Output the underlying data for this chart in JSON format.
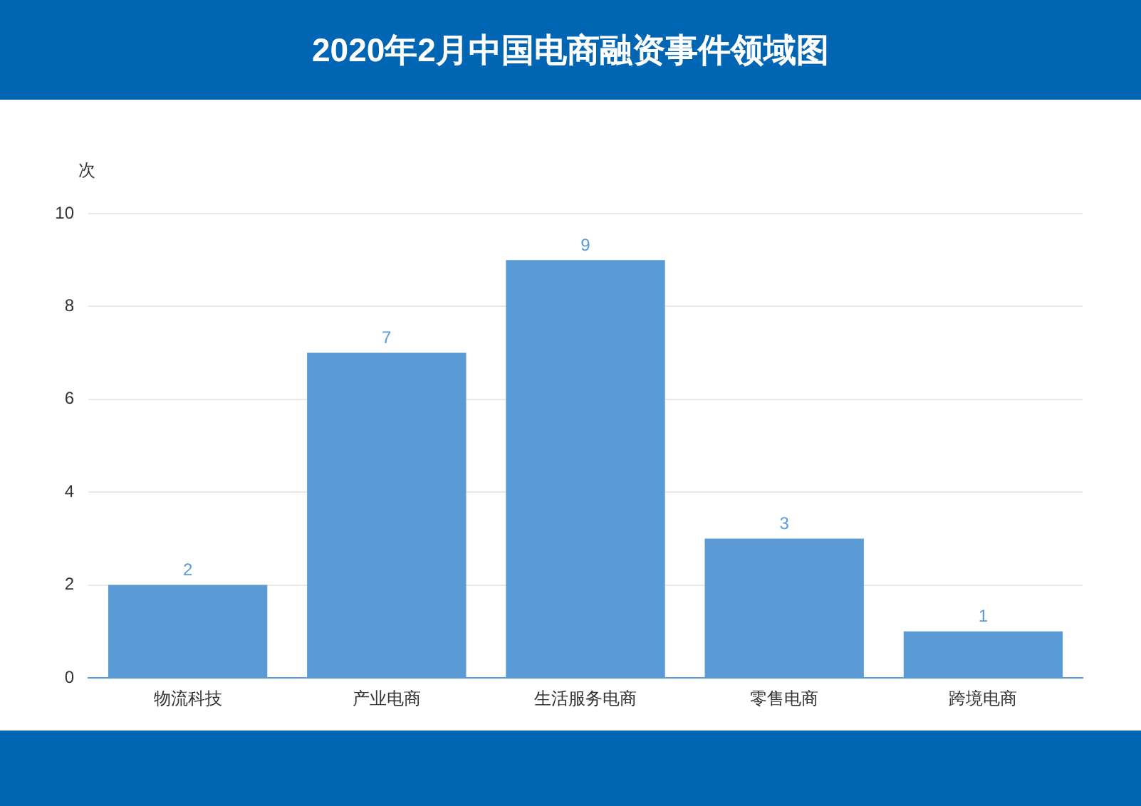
{
  "chart_data": {
    "type": "bar",
    "title": "2020年2月中国电商融资事件领域图",
    "ylabel": "次",
    "categories": [
      "物流科技",
      "产业电商",
      "生活服务电商",
      "零售电商",
      "跨境电商"
    ],
    "values": [
      2,
      7,
      9,
      3,
      1
    ],
    "color": "#5b9bd5",
    "ylim": [
      0,
      10
    ],
    "yticks": [
      0,
      2,
      4,
      6,
      8,
      10
    ],
    "grid": "y",
    "data_labels": true,
    "legend": false
  }
}
